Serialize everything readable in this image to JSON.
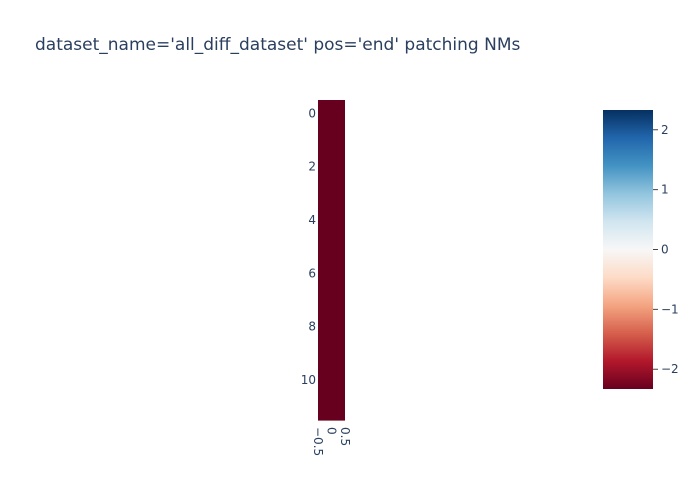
{
  "chart_data": {
    "type": "heatmap",
    "title": "dataset_name='all_diff_dataset' pos='end' patching NMs",
    "x_ticks": [
      "−0.5",
      "0",
      "0.5"
    ],
    "y_ticks": [
      "0",
      "2",
      "4",
      "6",
      "8",
      "10"
    ],
    "x_range": [
      -0.5,
      0.5
    ],
    "y_range": [
      -0.5,
      11.5
    ],
    "rows": 12,
    "cols": 1,
    "values": [
      [
        -2.33
      ],
      [
        -2.33
      ],
      [
        -2.33
      ],
      [
        -2.33
      ],
      [
        -2.33
      ],
      [
        -2.33
      ],
      [
        -2.33
      ],
      [
        -2.33
      ],
      [
        -2.33
      ],
      [
        -2.33
      ],
      [
        -2.33
      ],
      [
        -2.33
      ]
    ],
    "colorscale": {
      "name": "RdBu",
      "zmin": -2.33,
      "zmax": 2.33,
      "stops": [
        "#67001f",
        "#b2182b",
        "#d6604d",
        "#f4a582",
        "#fddbc7",
        "#f7f7f7",
        "#d1e5f0",
        "#92c5de",
        "#4393c3",
        "#2166ac",
        "#053061"
      ]
    },
    "colorbar_ticks": [
      "2",
      "1",
      "0",
      "−1",
      "−2"
    ],
    "colorbar_tick_values": [
      2,
      1,
      0,
      -1,
      -2
    ]
  }
}
